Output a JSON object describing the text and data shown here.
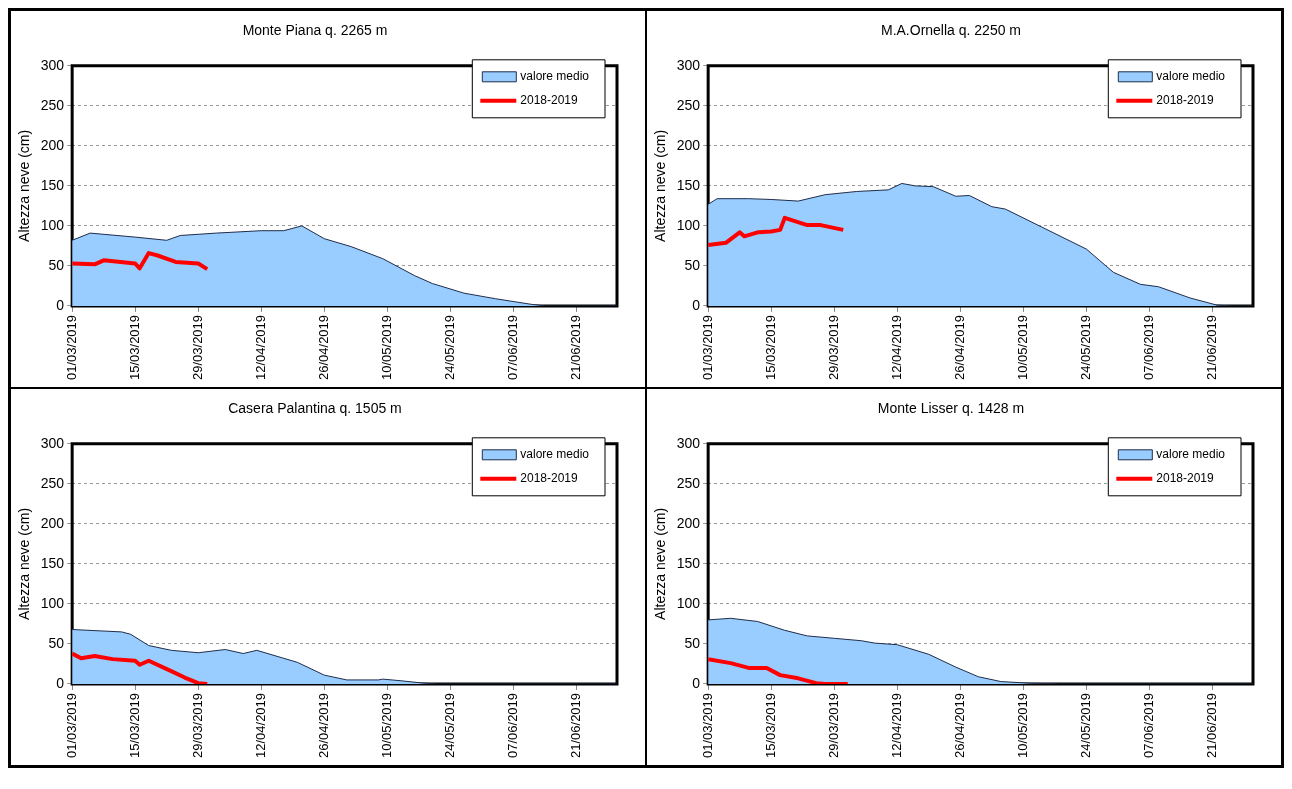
{
  "chart_data": [
    {
      "type": "area",
      "title": "Monte Piana q. 2265 m",
      "ylabel": "Altezza neve (cm)",
      "ylim": [
        0,
        300
      ],
      "yticks": [
        0,
        50,
        100,
        150,
        200,
        250,
        300
      ],
      "xlim": [
        "2019-03-01",
        "2019-06-30"
      ],
      "xticks": [
        {
          "value": "2019-03-01",
          "label": "01/03/2019"
        },
        {
          "value": "2019-03-15",
          "label": "15/03/2019"
        },
        {
          "value": "2019-03-29",
          "label": "29/03/2019"
        },
        {
          "value": "2019-04-12",
          "label": "12/04/2019"
        },
        {
          "value": "2019-04-26",
          "label": "26/04/2019"
        },
        {
          "value": "2019-05-10",
          "label": "10/05/2019"
        },
        {
          "value": "2019-05-24",
          "label": "24/05/2019"
        },
        {
          "value": "2019-06-07",
          "label": "07/06/2019"
        },
        {
          "value": "2019-06-21",
          "label": "21/06/2019"
        }
      ],
      "grid": "y",
      "legend": "top right",
      "marker": "none",
      "series": [
        {
          "name": "valore medio",
          "color": "#99ccff",
          "x": [
            "2019-03-01",
            "2019-03-05",
            "2019-03-15",
            "2019-03-22",
            "2019-03-25",
            "2019-04-02",
            "2019-04-12",
            "2019-04-17",
            "2019-04-21",
            "2019-04-26",
            "2019-05-02",
            "2019-05-09",
            "2019-05-16",
            "2019-05-20",
            "2019-05-27",
            "2019-06-03",
            "2019-06-11",
            "2019-06-14",
            "2019-06-30"
          ],
          "values": [
            82,
            91,
            86,
            82,
            88,
            91,
            94,
            94,
            100,
            84,
            74,
            59,
            38,
            28,
            16,
            9,
            2,
            0,
            0
          ]
        },
        {
          "name": "2018-2019",
          "type": "line",
          "color": "#ff0000",
          "x": [
            "2019-03-01",
            "2019-03-06",
            "2019-03-08",
            "2019-03-15",
            "2019-03-16",
            "2019-03-18",
            "2019-03-20",
            "2019-03-24",
            "2019-03-29",
            "2019-03-31"
          ],
          "values": [
            53,
            52,
            57,
            53,
            47,
            66,
            63,
            55,
            53,
            46
          ]
        }
      ]
    },
    {
      "type": "area",
      "title": "M.A.Ornella q. 2250 m",
      "ylabel": "Altezza neve (cm)",
      "ylim": [
        0,
        300
      ],
      "yticks": [
        0,
        50,
        100,
        150,
        200,
        250,
        300
      ],
      "xlim": [
        "2019-03-01",
        "2019-06-30"
      ],
      "xticks": [
        {
          "value": "2019-03-01",
          "label": "01/03/2019"
        },
        {
          "value": "2019-03-15",
          "label": "15/03/2019"
        },
        {
          "value": "2019-03-29",
          "label": "29/03/2019"
        },
        {
          "value": "2019-04-12",
          "label": "12/04/2019"
        },
        {
          "value": "2019-04-26",
          "label": "26/04/2019"
        },
        {
          "value": "2019-05-10",
          "label": "10/05/2019"
        },
        {
          "value": "2019-05-24",
          "label": "24/05/2019"
        },
        {
          "value": "2019-06-07",
          "label": "07/06/2019"
        },
        {
          "value": "2019-06-21",
          "label": "21/06/2019"
        }
      ],
      "grid": "y",
      "legend": "top right",
      "marker": "none",
      "series": [
        {
          "name": "valore medio",
          "color": "#99ccff",
          "x": [
            "2019-03-01",
            "2019-03-03",
            "2019-03-10",
            "2019-03-15",
            "2019-03-21",
            "2019-03-27",
            "2019-04-03",
            "2019-04-10",
            "2019-04-13",
            "2019-04-16",
            "2019-04-20",
            "2019-04-25",
            "2019-04-28",
            "2019-05-03",
            "2019-05-06",
            "2019-05-15",
            "2019-05-24",
            "2019-05-30",
            "2019-06-05",
            "2019-06-09",
            "2019-06-16",
            "2019-06-22",
            "2019-06-25",
            "2019-06-30"
          ],
          "values": [
            127,
            134,
            134,
            133,
            131,
            139,
            143,
            145,
            153,
            150,
            149,
            137,
            138,
            124,
            121,
            96,
            71,
            42,
            27,
            24,
            10,
            1,
            0,
            0
          ]
        },
        {
          "name": "2018-2019",
          "type": "line",
          "color": "#ff0000",
          "x": [
            "2019-03-01",
            "2019-03-05",
            "2019-03-08",
            "2019-03-09",
            "2019-03-12",
            "2019-03-15",
            "2019-03-17",
            "2019-03-18",
            "2019-03-23",
            "2019-03-26",
            "2019-03-31"
          ],
          "values": [
            76,
            79,
            92,
            87,
            92,
            93,
            95,
            110,
            101,
            101,
            95
          ]
        }
      ]
    },
    {
      "type": "area",
      "title": "Casera Palantina q. 1505 m",
      "ylabel": "Altezza neve (cm)",
      "ylim": [
        0,
        300
      ],
      "yticks": [
        0,
        50,
        100,
        150,
        200,
        250,
        300
      ],
      "xlim": [
        "2019-03-01",
        "2019-06-30"
      ],
      "xticks": [
        {
          "value": "2019-03-01",
          "label": "01/03/2019"
        },
        {
          "value": "2019-03-15",
          "label": "15/03/2019"
        },
        {
          "value": "2019-03-29",
          "label": "29/03/2019"
        },
        {
          "value": "2019-04-12",
          "label": "12/04/2019"
        },
        {
          "value": "2019-04-26",
          "label": "26/04/2019"
        },
        {
          "value": "2019-05-10",
          "label": "10/05/2019"
        },
        {
          "value": "2019-05-24",
          "label": "24/05/2019"
        },
        {
          "value": "2019-06-07",
          "label": "07/06/2019"
        },
        {
          "value": "2019-06-21",
          "label": "21/06/2019"
        }
      ],
      "grid": "y",
      "legend": "top right",
      "marker": "none",
      "series": [
        {
          "name": "valore medio",
          "color": "#99ccff",
          "x": [
            "2019-03-01",
            "2019-03-12",
            "2019-03-14",
            "2019-03-18",
            "2019-03-23",
            "2019-03-29",
            "2019-04-04",
            "2019-04-08",
            "2019-04-11",
            "2019-04-17",
            "2019-04-20",
            "2019-04-26",
            "2019-05-01",
            "2019-05-08",
            "2019-05-09",
            "2019-05-13",
            "2019-05-18",
            "2019-05-21",
            "2019-06-30"
          ],
          "values": [
            68,
            65,
            62,
            48,
            42,
            39,
            43,
            38,
            42,
            32,
            27,
            11,
            5,
            5,
            6,
            4,
            1,
            0,
            0
          ]
        },
        {
          "name": "2018-2019",
          "type": "line",
          "color": "#ff0000",
          "x": [
            "2019-03-01",
            "2019-03-03",
            "2019-03-06",
            "2019-03-10",
            "2019-03-15",
            "2019-03-16",
            "2019-03-18",
            "2019-03-23",
            "2019-03-26",
            "2019-03-29",
            "2019-03-31"
          ],
          "values": [
            38,
            32,
            35,
            31,
            29,
            24,
            29,
            16,
            8,
            1,
            0
          ]
        }
      ]
    },
    {
      "type": "area",
      "title": "Monte Lisser q. 1428 m",
      "ylabel": "Altezza neve (cm)",
      "ylim": [
        0,
        300
      ],
      "yticks": [
        0,
        50,
        100,
        150,
        200,
        250,
        300
      ],
      "xlim": [
        "2019-03-01",
        "2019-06-30"
      ],
      "xticks": [
        {
          "value": "2019-03-01",
          "label": "01/03/2019"
        },
        {
          "value": "2019-03-15",
          "label": "15/03/2019"
        },
        {
          "value": "2019-03-29",
          "label": "29/03/2019"
        },
        {
          "value": "2019-04-12",
          "label": "12/04/2019"
        },
        {
          "value": "2019-04-26",
          "label": "26/04/2019"
        },
        {
          "value": "2019-05-10",
          "label": "10/05/2019"
        },
        {
          "value": "2019-05-24",
          "label": "24/05/2019"
        },
        {
          "value": "2019-06-07",
          "label": "07/06/2019"
        },
        {
          "value": "2019-06-21",
          "label": "21/06/2019"
        }
      ],
      "grid": "y",
      "legend": "top right",
      "marker": "none",
      "series": [
        {
          "name": "valore medio",
          "color": "#99ccff",
          "x": [
            "2019-03-01",
            "2019-03-06",
            "2019-03-12",
            "2019-03-18",
            "2019-03-23",
            "2019-03-29",
            "2019-04-04",
            "2019-04-07",
            "2019-04-12",
            "2019-04-19",
            "2019-04-25",
            "2019-04-30",
            "2019-05-05",
            "2019-05-11",
            "2019-05-18",
            "2019-06-30"
          ],
          "values": [
            80,
            82,
            78,
            67,
            60,
            57,
            54,
            51,
            49,
            37,
            21,
            9,
            3,
            1,
            0,
            0
          ]
        },
        {
          "name": "2018-2019",
          "type": "line",
          "color": "#ff0000",
          "x": [
            "2019-03-01",
            "2019-03-06",
            "2019-03-10",
            "2019-03-14",
            "2019-03-17",
            "2019-03-21",
            "2019-03-25",
            "2019-03-27",
            "2019-04-01"
          ],
          "values": [
            31,
            26,
            20,
            20,
            11,
            7,
            1,
            0,
            0
          ]
        }
      ]
    }
  ]
}
